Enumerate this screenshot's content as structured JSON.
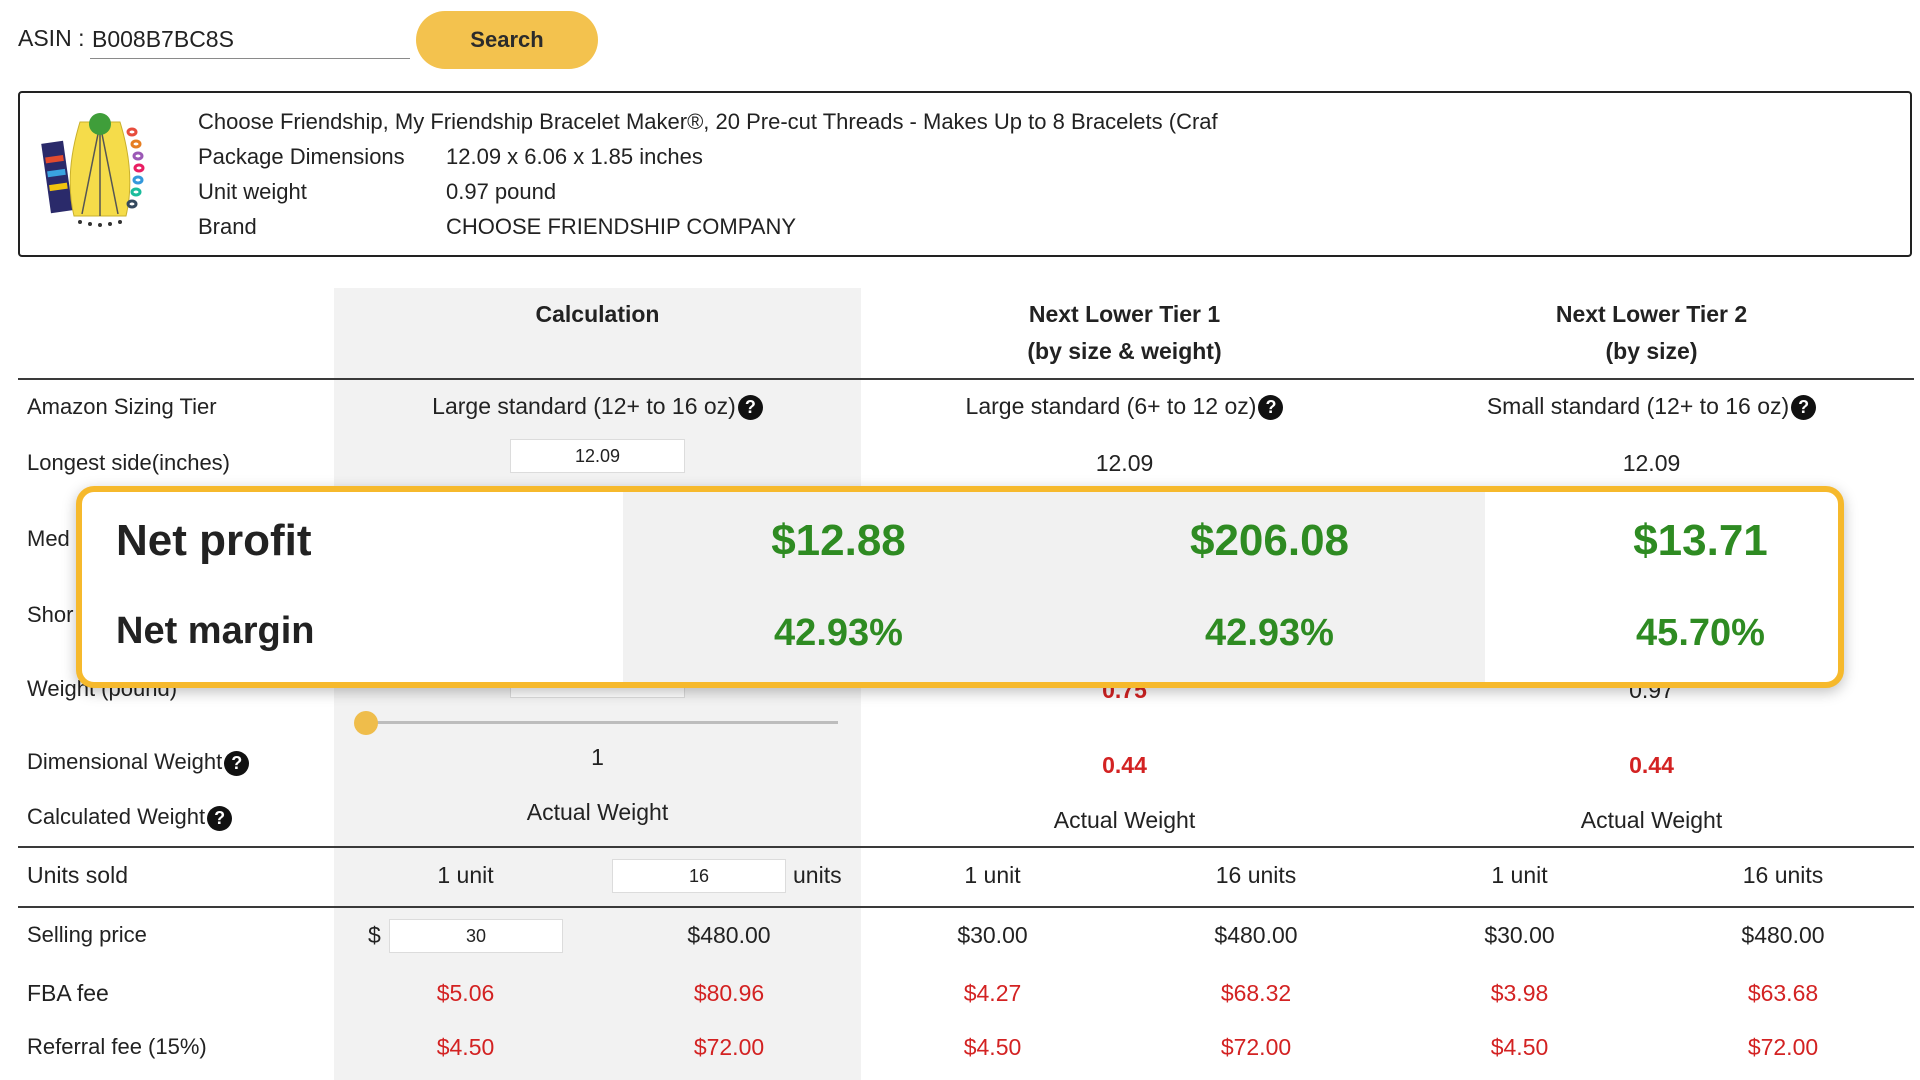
{
  "search": {
    "asin_label": "ASIN :",
    "asin_value": "B008B7BC8S",
    "button_label": "Search"
  },
  "product": {
    "title": "Choose Friendship, My Friendship Bracelet Maker®, 20 Pre-cut Threads - Makes Up to 8 Bracelets (Craf",
    "details": [
      {
        "label": "Package Dimensions",
        "value": "12.09 x 6.06 x 1.85 inches"
      },
      {
        "label": "Unit weight",
        "value": "0.97 pound"
      },
      {
        "label": "Brand",
        "value": "CHOOSE FRIENDSHIP COMPANY"
      }
    ]
  },
  "columns": {
    "calc": "Calculation",
    "tier1_line1": "Next Lower Tier 1",
    "tier1_line2": "(by size & weight)",
    "tier2_line1": "Next Lower Tier 2",
    "tier2_line2": "(by size)"
  },
  "rows": {
    "sizing_tier": {
      "label": "Amazon Sizing Tier",
      "calc": "Large standard (12+ to 16 oz)",
      "tier1": "Large standard (6+ to 12 oz)",
      "tier2": "Small standard (12+ to 16 oz)"
    },
    "longest_side": {
      "label": "Longest side(inches)",
      "calc": "12.09",
      "tier1": "12.09",
      "tier2": "12.09"
    },
    "median_partial": "Med",
    "shortest_partial": "Shor",
    "weight_partial": "Weight (pound)",
    "tier1_weight_partial": "0.75",
    "tier2_weight_partial": "0.97",
    "slider_level": 0.0,
    "dimensional_weight": {
      "label": "Dimensional Weight",
      "calc": "1",
      "tier1": "0.44",
      "tier2": "0.44"
    },
    "calculated_weight": {
      "label": "Calculated Weight",
      "calc": "Actual Weight",
      "tier1": "Actual Weight",
      "tier2": "Actual Weight"
    },
    "units_sold": {
      "label": "Units sold",
      "calc_unit": "1 unit",
      "calc_qty": "16",
      "calc_units_suffix": "units",
      "tier1_unit": "1 unit",
      "tier1_units": "16 units",
      "tier2_unit": "1 unit",
      "tier2_units": "16 units"
    },
    "selling_price": {
      "label": "Selling price",
      "currency": "$",
      "calc_input": "30",
      "calc_total": "$480.00",
      "tier1_unit": "$30.00",
      "tier1_total": "$480.00",
      "tier2_unit": "$30.00",
      "tier2_total": "$480.00"
    },
    "fba_fee": {
      "label": "FBA fee",
      "calc_unit": "$5.06",
      "calc_total": "$80.96",
      "tier1_unit": "$4.27",
      "tier1_total": "$68.32",
      "tier2_unit": "$3.98",
      "tier2_total": "$63.68"
    },
    "referral_fee": {
      "label": "Referral fee (15%)",
      "calc_unit": "$4.50",
      "calc_total": "$72.00",
      "tier1_unit": "$4.50",
      "tier1_total": "$72.00",
      "tier2_unit": "$4.50",
      "tier2_total": "$72.00"
    }
  },
  "help_icon_glyph": "?",
  "summary": {
    "net_profit_label": "Net profit",
    "net_margin_label": "Net margin",
    "calc_profit": "$12.88",
    "tier1_profit": "$206.08",
    "tier2_profit": "$13.71",
    "calc_margin": "42.93%",
    "tier1_margin": "42.93%",
    "tier2_margin": "45.70%"
  },
  "colors": {
    "accent": "#f3c24e",
    "profit_green": "#2e8b22",
    "fee_red": "#d32222",
    "card_border": "#f6b92c"
  }
}
